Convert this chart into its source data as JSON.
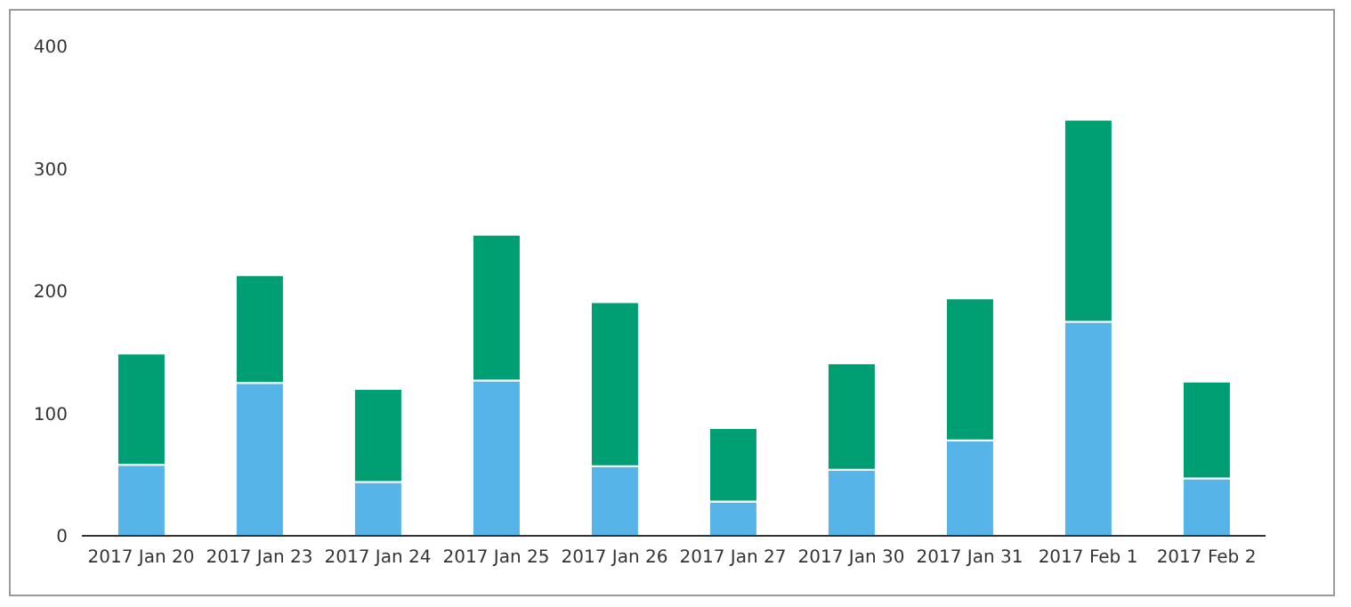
{
  "chart_data": {
    "type": "bar",
    "stacked": true,
    "categories": [
      "2017 Jan 20",
      "2017 Jan 23",
      "2017 Jan 24",
      "2017 Jan 25",
      "2017 Jan 26",
      "2017 Jan 27",
      "2017 Jan 30",
      "2017 Jan 31",
      "2017 Feb 1",
      "2017 Feb 2"
    ],
    "series": [
      {
        "color": "#56b4e9",
        "values": [
          58,
          125,
          44,
          127,
          57,
          28,
          54,
          78,
          175,
          47
        ]
      },
      {
        "color": "#009e73",
        "values": [
          91,
          88,
          76,
          119,
          134,
          60,
          87,
          116,
          165,
          79
        ]
      }
    ],
    "ylim": [
      0,
      400
    ],
    "yticks": [
      0,
      100,
      200,
      300,
      400
    ],
    "grid": false,
    "legend": false
  }
}
